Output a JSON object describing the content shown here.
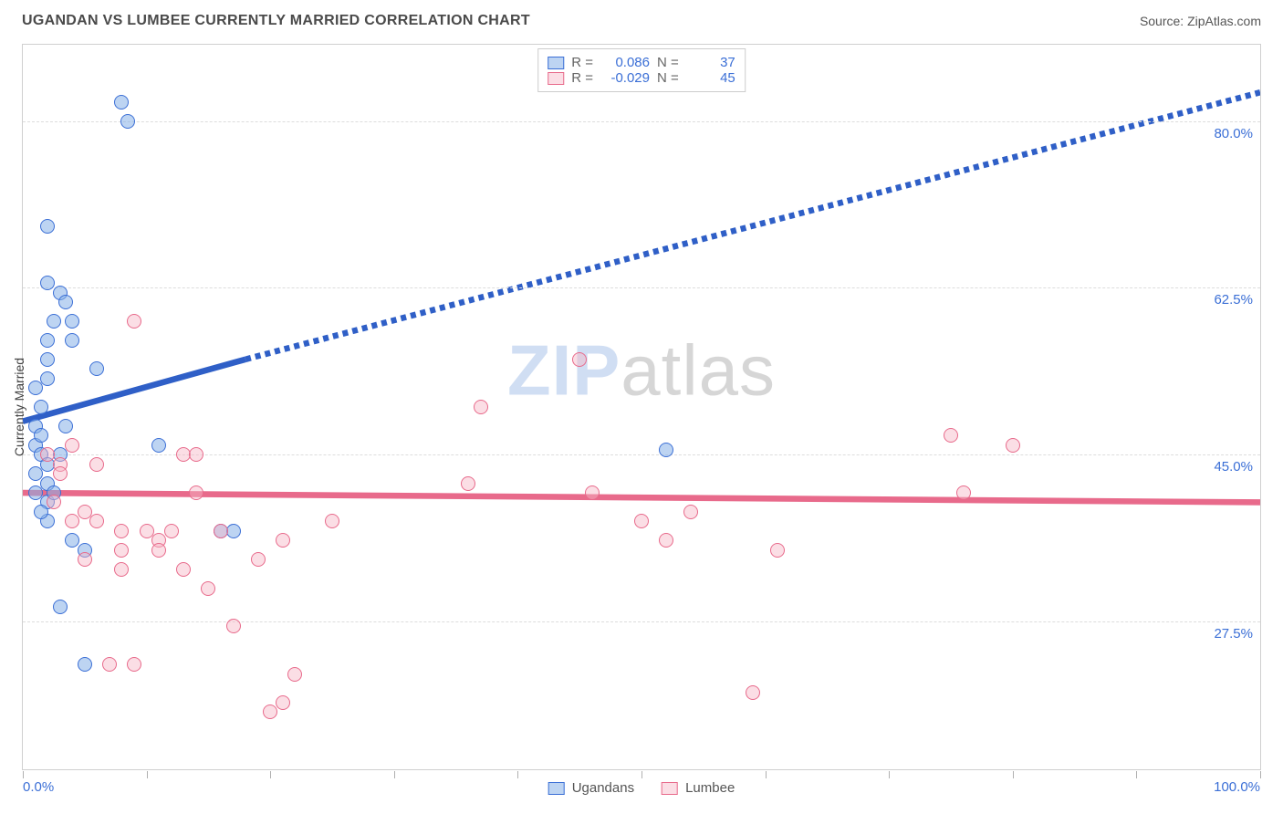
{
  "header": {
    "title": "UGANDAN VS LUMBEE CURRENTLY MARRIED CORRELATION CHART",
    "source": "Source: ZipAtlas.com"
  },
  "chart": {
    "type": "scatter",
    "ylabel": "Currently Married",
    "xlim": [
      0,
      100
    ],
    "ylim": [
      12,
      88
    ],
    "x_min_label": "0.0%",
    "x_max_label": "100.0%",
    "x_ticks": [
      0,
      10,
      20,
      30,
      40,
      50,
      60,
      70,
      80,
      90,
      100
    ],
    "y_gridlines": [
      {
        "value": 27.5,
        "label": "27.5%"
      },
      {
        "value": 45.0,
        "label": "45.0%"
      },
      {
        "value": 62.5,
        "label": "62.5%"
      },
      {
        "value": 80.0,
        "label": "80.0%"
      }
    ],
    "watermark": {
      "part1": "ZIP",
      "part2": "atlas"
    },
    "colors": {
      "blue_fill": "rgba(135,176,232,0.55)",
      "blue_stroke": "#3b6fd6",
      "pink_fill": "rgba(247,181,198,0.45)",
      "pink_stroke": "#e86a8b",
      "grid": "#dcdcdc",
      "axis_text": "#3b6fd6"
    },
    "series": [
      {
        "id": "ugandans",
        "label": "Ugandans",
        "class": "blue",
        "R_label": "R =",
        "R_value": "0.086",
        "N_label": "N =",
        "N_value": "37",
        "points": [
          [
            8,
            82
          ],
          [
            8.5,
            80
          ],
          [
            2,
            69
          ],
          [
            2,
            63
          ],
          [
            3,
            62
          ],
          [
            3.5,
            61
          ],
          [
            4,
            59
          ],
          [
            2,
            57
          ],
          [
            2,
            55
          ],
          [
            6,
            54
          ],
          [
            1,
            52
          ],
          [
            1.5,
            50
          ],
          [
            1,
            48
          ],
          [
            1,
            46
          ],
          [
            1.5,
            45
          ],
          [
            11,
            46
          ],
          [
            2,
            44
          ],
          [
            1,
            43
          ],
          [
            2,
            40
          ],
          [
            2,
            38
          ],
          [
            4,
            36
          ],
          [
            5,
            35
          ],
          [
            16,
            37
          ],
          [
            17,
            37
          ],
          [
            1.5,
            47
          ],
          [
            2.5,
            59
          ],
          [
            3,
            45
          ],
          [
            2,
            42
          ],
          [
            1,
            41
          ],
          [
            1.5,
            39
          ],
          [
            5,
            23
          ],
          [
            4,
            57
          ],
          [
            52,
            45.5
          ],
          [
            3,
            29
          ],
          [
            2,
            53
          ],
          [
            3.5,
            48
          ],
          [
            2.5,
            41
          ]
        ],
        "regression": {
          "solid": {
            "x1": 0,
            "y1": 48.5,
            "x2": 18,
            "y2": 55
          },
          "dashed": {
            "x1": 18,
            "y1": 55,
            "x2": 100,
            "y2": 83
          },
          "color": "#2f5fc7",
          "dash": "6,5",
          "width": 2.2
        }
      },
      {
        "id": "lumbee",
        "label": "Lumbee",
        "class": "pink",
        "R_label": "R =",
        "R_value": "-0.029",
        "N_label": "N =",
        "N_value": "45",
        "points": [
          [
            2,
            45
          ],
          [
            3,
            44
          ],
          [
            4,
            46
          ],
          [
            5,
            39
          ],
          [
            6,
            44
          ],
          [
            8,
            33
          ],
          [
            8,
            37
          ],
          [
            9,
            59
          ],
          [
            10,
            37
          ],
          [
            11,
            36
          ],
          [
            11,
            35
          ],
          [
            13,
            33
          ],
          [
            13,
            45
          ],
          [
            14,
            45
          ],
          [
            14,
            41
          ],
          [
            15,
            31
          ],
          [
            16,
            37
          ],
          [
            17,
            27
          ],
          [
            20,
            18
          ],
          [
            21,
            19
          ],
          [
            21,
            36
          ],
          [
            22,
            22
          ],
          [
            25,
            38
          ],
          [
            36,
            42
          ],
          [
            37,
            50
          ],
          [
            45,
            55
          ],
          [
            46,
            41
          ],
          [
            50,
            38
          ],
          [
            52,
            36
          ],
          [
            54,
            39
          ],
          [
            59,
            20
          ],
          [
            61,
            35
          ],
          [
            75,
            47
          ],
          [
            76,
            41
          ],
          [
            80,
            46
          ],
          [
            7,
            23
          ],
          [
            9,
            23
          ],
          [
            6,
            38
          ],
          [
            4,
            38
          ],
          [
            8,
            35
          ],
          [
            12,
            37
          ],
          [
            3,
            43
          ],
          [
            2.5,
            40
          ],
          [
            5,
            34
          ],
          [
            19,
            34
          ]
        ],
        "regression": {
          "solid": {
            "x1": 0,
            "y1": 41,
            "x2": 100,
            "y2": 40
          },
          "color": "#e86a8b",
          "width": 2.2
        }
      }
    ]
  },
  "bottom_legend": [
    {
      "swatch_class": "blue",
      "label": "Ugandans"
    },
    {
      "swatch_class": "pink",
      "label": "Lumbee"
    }
  ]
}
